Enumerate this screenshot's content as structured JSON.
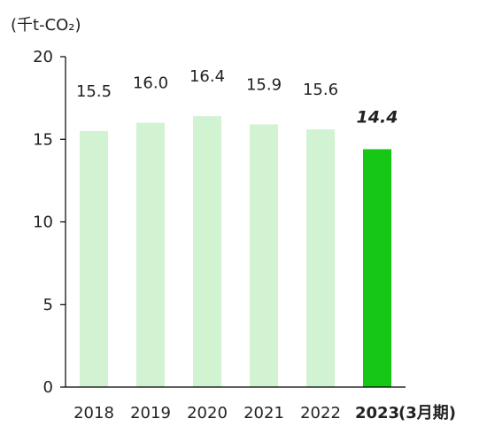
{
  "unit_label": "(千t-CO₂)",
  "colors": {
    "bar_past": "#d2f3d2",
    "bar_current": "#16c716",
    "axis": "#000000",
    "text": "#222222"
  },
  "chart_data": {
    "type": "bar",
    "categories": [
      "2018",
      "2019",
      "2020",
      "2021",
      "2022",
      "2023"
    ],
    "values": [
      15.5,
      16.0,
      16.4,
      15.9,
      15.6,
      14.4
    ],
    "data_labels": [
      "15.5",
      "16.0",
      "16.4",
      "15.9",
      "15.6",
      "14.4"
    ],
    "highlight_category": "2023",
    "highlight_suffix": "(3月期)",
    "title": "",
    "xlabel": "",
    "ylabel": "(千t-CO₂)",
    "ylim": [
      0,
      20
    ],
    "yticks": [
      0,
      5,
      10,
      15,
      20
    ],
    "grid": false,
    "legend": "none"
  }
}
